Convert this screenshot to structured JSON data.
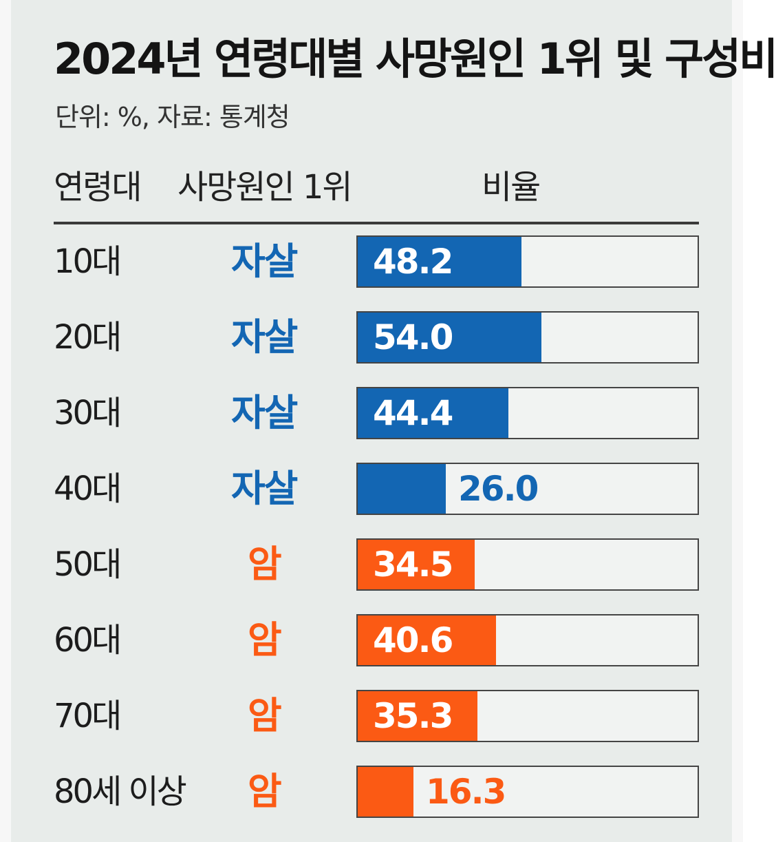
{
  "title": "2024년 연령대별 사망원인 1위 및 구성비",
  "subtitle": "단위: %, 자료: 통계청",
  "headers": {
    "age": "연령대",
    "cause": "사망원인 1위",
    "ratio": "비율"
  },
  "colors": {
    "suicide": "#1366b3",
    "cancer": "#fb5a14",
    "text": "#1c1c1c"
  },
  "chart_data": {
    "type": "bar",
    "orientation": "horizontal",
    "title": "2024년 연령대별 사망원인 1위 및 구성비",
    "unit": "%",
    "source": "통계청",
    "xlim": [
      0,
      100
    ],
    "categories": [
      "10대",
      "20대",
      "30대",
      "40대",
      "50대",
      "60대",
      "70대",
      "80세 이상"
    ],
    "causes": [
      "자살",
      "자살",
      "자살",
      "자살",
      "암",
      "암",
      "암",
      "암"
    ],
    "values": [
      48.2,
      54.0,
      44.4,
      26.0,
      34.5,
      40.6,
      35.3,
      16.3
    ],
    "labels": [
      "48.2",
      "54.0",
      "44.4",
      "26.0",
      "34.5",
      "40.6",
      "35.3",
      "16.3"
    ]
  }
}
